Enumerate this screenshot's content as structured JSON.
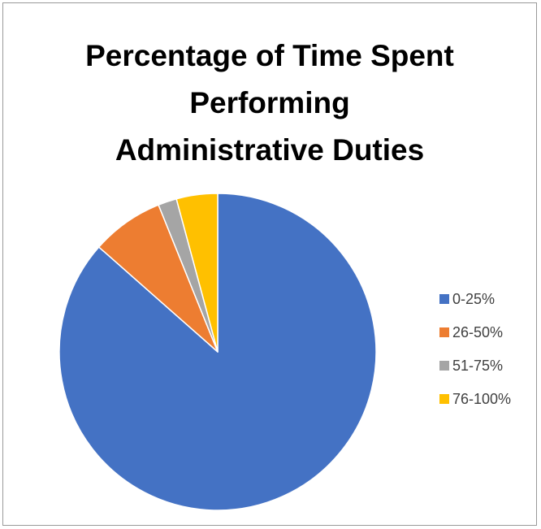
{
  "chart_data": {
    "type": "pie",
    "title": [
      "Percentage of Time Spent",
      "Performing",
      "Administrative Duties"
    ],
    "categories": [
      "0-25%",
      "26-50%",
      "51-75%",
      "76-100%"
    ],
    "values": [
      86.5,
      7.4,
      1.9,
      4.2
    ],
    "colors": [
      "#4472c4",
      "#ed7d31",
      "#a5a5a5",
      "#ffc000"
    ],
    "start_angle": 0,
    "direction": "clockwise",
    "legend_position": "right"
  }
}
